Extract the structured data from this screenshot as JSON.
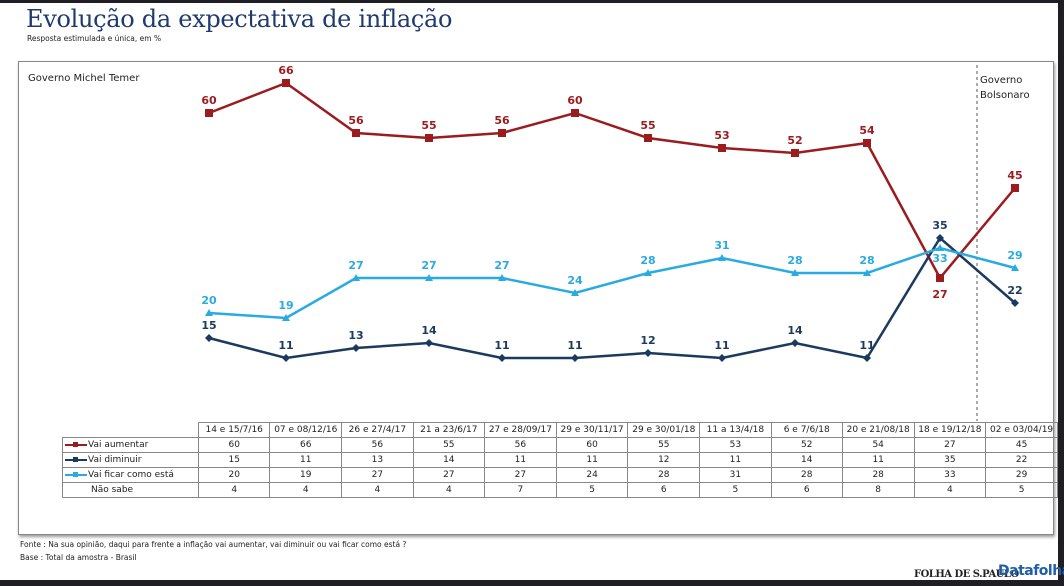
{
  "title": "Evolução da expectativa de inflação",
  "subtitle": "Resposta estimulada e única, em %",
  "governments": [
    "Governo Michel Temer",
    "Governo Bolsonaro"
  ],
  "chart_data": {
    "type": "line",
    "categories": [
      "14 e 15/7/16",
      "07 e 08/12/16",
      "26 e 27/4/17",
      "21 a 23/6/17",
      "27 e 28/09/17",
      "29 e 30/11/17",
      "29 e 30/01/18",
      "11 a 13/4/18",
      "6 e 7/6/18",
      "20 e 21/08/18",
      "18 e 19/12/18",
      "02 e 03/04/19"
    ],
    "series": [
      {
        "name": "Vai aumentar",
        "color": "#9b1c1f",
        "marker": "square",
        "values": [
          60,
          66,
          56,
          55,
          56,
          60,
          55,
          53,
          52,
          54,
          27,
          45
        ]
      },
      {
        "name": "Vai diminuir",
        "color": "#1c3a5e",
        "marker": "diamond",
        "values": [
          15,
          11,
          13,
          14,
          11,
          11,
          12,
          11,
          14,
          11,
          35,
          22
        ]
      },
      {
        "name": "Vai ficar como está",
        "color": "#29abe2",
        "marker": "triangle",
        "values": [
          20,
          19,
          27,
          27,
          27,
          24,
          28,
          31,
          28,
          28,
          33,
          29
        ]
      }
    ],
    "table_extra": {
      "name": "Não sabe",
      "values": [
        4,
        4,
        4,
        4,
        7,
        5,
        6,
        5,
        6,
        8,
        4,
        5
      ]
    },
    "grid": false
  },
  "footer": {
    "source": "Fonte : Na sua opinião, daqui para frente a inflação vai aumentar, vai diminuir ou vai ficar como está ?",
    "base": "Base : Total da amostra - Brasil",
    "logos": [
      "FOLHA DE S.PAULO",
      "Datafolha"
    ]
  }
}
